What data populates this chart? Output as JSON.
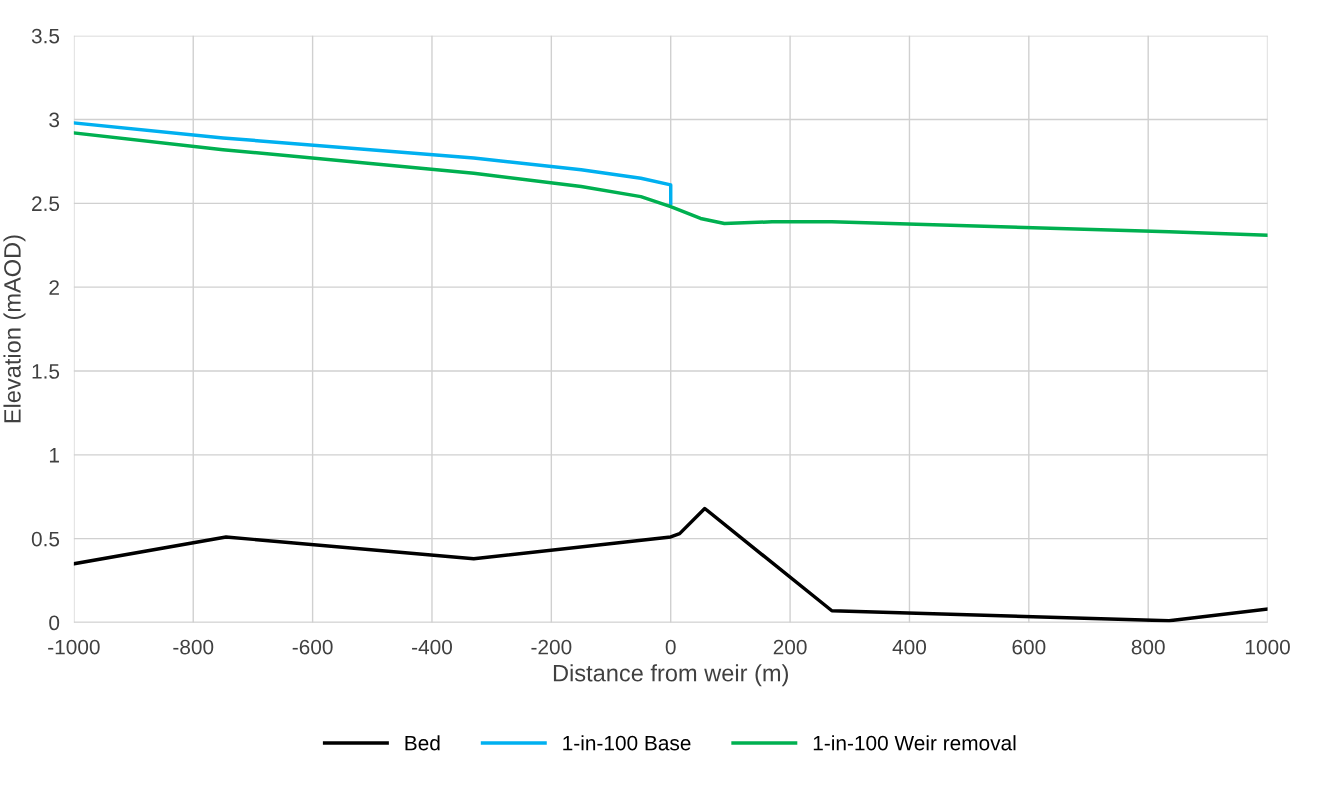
{
  "chart_data": {
    "type": "line",
    "xlabel": "Distance from weir (m)",
    "ylabel": "Elevation (mAOD)",
    "xlim": [
      -1000,
      1000
    ],
    "xticks": [
      -1000,
      -800,
      -600,
      -400,
      -200,
      0,
      200,
      400,
      600,
      800,
      1000
    ],
    "ylim": [
      0,
      3.5
    ],
    "yticks": [
      0,
      0.5,
      1,
      1.5,
      2,
      2.5,
      3,
      3.5
    ],
    "grid": true,
    "legend": "bottom",
    "marker": "none",
    "line_style": "solid",
    "series": [
      {
        "name": "Bed",
        "color": "#000000",
        "x": [
          -1000,
          -745,
          -330,
          0,
          15,
          57,
          270,
          835,
          1000
        ],
        "values": [
          0.35,
          0.51,
          0.38,
          0.51,
          0.53,
          0.68,
          0.07,
          0.01,
          0.08
        ]
      },
      {
        "name": "1-in-100 Base",
        "color": "#00b0f0",
        "x": [
          -1000,
          -750,
          -330,
          -150,
          -50,
          0,
          0
        ],
        "values": [
          2.98,
          2.89,
          2.77,
          2.7,
          2.65,
          2.61,
          2.5
        ]
      },
      {
        "name": "1-in-100 Weir removal",
        "color": "#00b050",
        "x": [
          -1000,
          -750,
          -330,
          -150,
          -50,
          0,
          50,
          90,
          170,
          270,
          835,
          1000
        ],
        "values": [
          2.92,
          2.82,
          2.68,
          2.6,
          2.54,
          2.48,
          2.41,
          2.38,
          2.39,
          2.39,
          2.33,
          2.31
        ]
      }
    ]
  }
}
